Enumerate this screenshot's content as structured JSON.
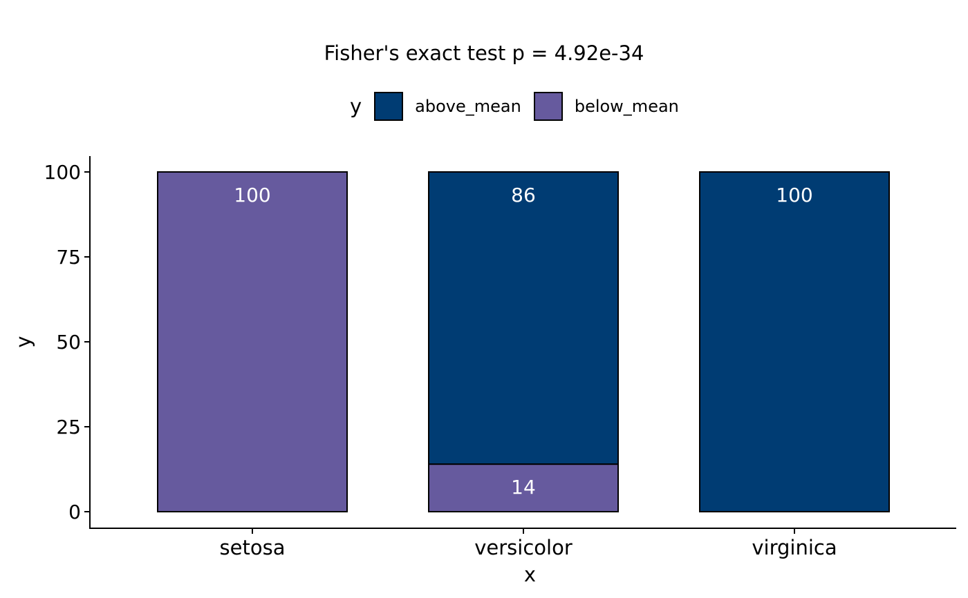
{
  "chart_data": {
    "type": "bar",
    "stacked": true,
    "title": "Fisher's exact test p = 4.92e-34",
    "xlabel": "x",
    "ylabel": "y",
    "categories": [
      "setosa",
      "versicolor",
      "virginica"
    ],
    "series": [
      {
        "name": "below_mean",
        "values": [
          100,
          14,
          0
        ],
        "color": "#665A9E"
      },
      {
        "name": "above_mean",
        "values": [
          0,
          86,
          100
        ],
        "color": "#003C73"
      }
    ],
    "ylim": [
      0,
      100
    ],
    "yticks": [
      "0",
      "25",
      "50",
      "75",
      "100"
    ],
    "legend": {
      "title": "y",
      "position": "top",
      "entries": [
        {
          "name": "above_mean",
          "color": "#003C73"
        },
        {
          "name": "below_mean",
          "color": "#665A9E"
        }
      ]
    },
    "grid": false,
    "bar_label_color": "#FFFFFF"
  }
}
